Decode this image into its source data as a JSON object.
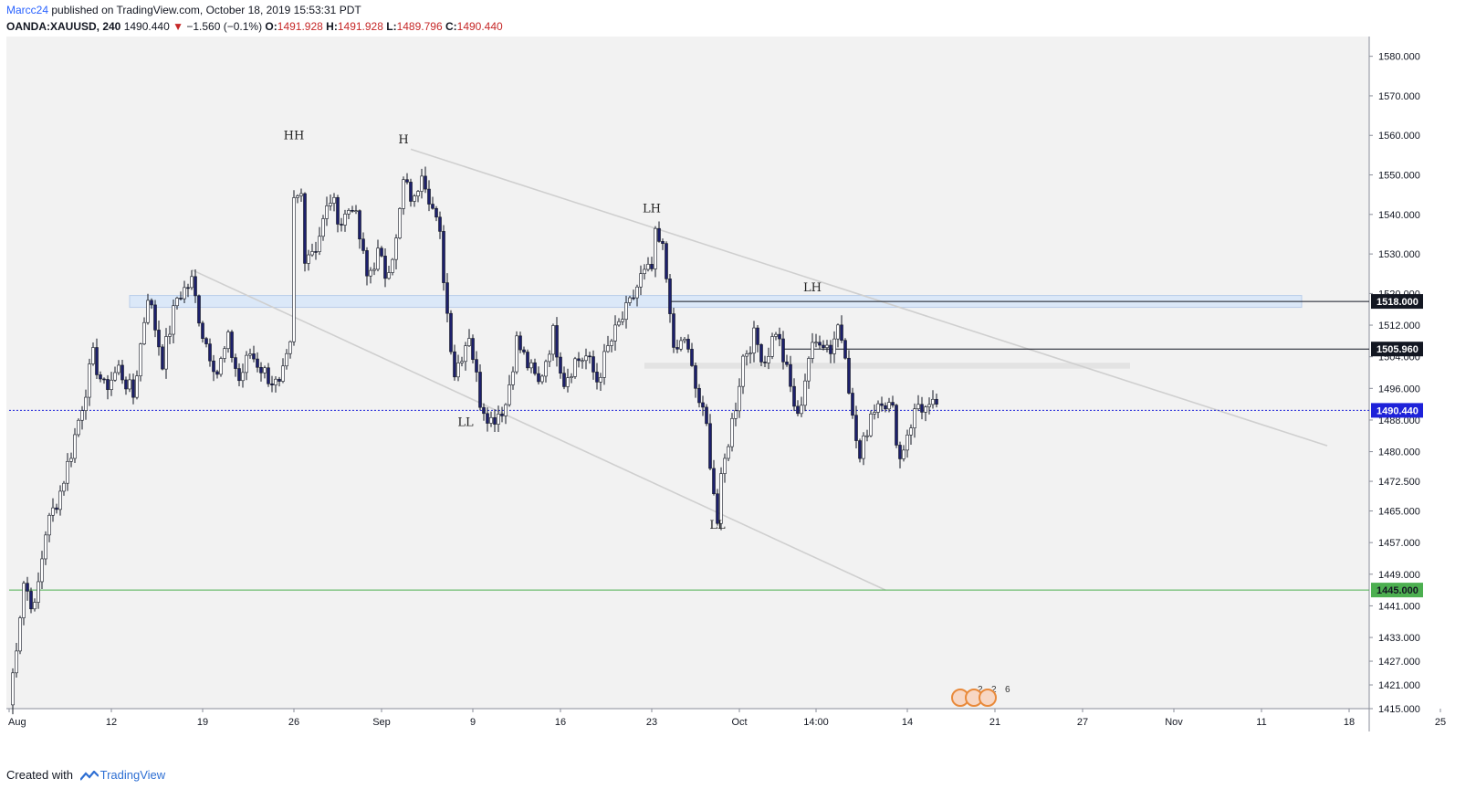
{
  "header": {
    "author": "Marcc24",
    "published": "published on TradingView.com, October 18, 2019 15:53:31 PDT",
    "symbol": "OANDA:XAUUSD, 240",
    "price": "1490.440",
    "arrow": "▼",
    "change": "−1.560 (−0.1%)",
    "o_label": "O:",
    "o_value": "1491.928",
    "h_label": "H:",
    "h_value": "1491.928",
    "l_label": "L:",
    "l_value": "1489.796",
    "c_label": "C:",
    "c_value": "1490.440"
  },
  "footer": {
    "created_with": "Created with",
    "brand": "TradingView"
  },
  "colors": {
    "background": "#f2f2f2",
    "candle": "#1c1f6b",
    "wick": "#131722",
    "zone": "#dbe8f8",
    "green_line": "#4caf50",
    "blue_price": "#1e22d9"
  },
  "chart_data": {
    "type": "candlestick",
    "symbol": "OANDA:XAUUSD",
    "interval": "240",
    "y_axis": {
      "min": 1415,
      "max": 1585,
      "ticks": [
        "1415.000",
        "1421.000",
        "1427.000",
        "1433.000",
        "1441.000",
        "1449.000",
        "1457.000",
        "1465.000",
        "1472.500",
        "1480.000",
        "1488.000",
        "1496.000",
        "1504.000",
        "1512.000",
        "1520.000",
        "1530.000",
        "1540.000",
        "1550.000",
        "1560.000",
        "1570.000",
        "1580.000"
      ],
      "tick_values": [
        1415,
        1421,
        1427,
        1433,
        1441,
        1449,
        1457,
        1465,
        1472.5,
        1480,
        1488,
        1496,
        1504,
        1512,
        1520,
        1530,
        1540,
        1550,
        1560,
        1570,
        1580
      ]
    },
    "x_axis": {
      "labels": [
        "Aug",
        "12",
        "19",
        "26",
        "Sep",
        "9",
        "16",
        "23",
        "Oct",
        "14:00",
        "14",
        "21",
        "27",
        "Nov",
        "11",
        "18",
        "25"
      ],
      "label_bars": [
        0,
        28,
        53,
        78,
        102,
        127,
        151,
        176,
        200,
        221,
        246,
        270,
        294,
        319,
        343,
        367,
        392
      ]
    },
    "price_labels": [
      {
        "text": "1518.000",
        "value": 1518,
        "style": "dark"
      },
      {
        "text": "1505.960",
        "value": 1505.96,
        "style": "dark"
      },
      {
        "text": "1490.440",
        "value": 1490.44,
        "style": "blue"
      },
      {
        "text": "1445.000",
        "value": 1445,
        "style": "green"
      }
    ],
    "annotations": [
      {
        "text": "HH",
        "bar": 78,
        "price": 1559
      },
      {
        "text": "H",
        "bar": 108,
        "price": 1558
      },
      {
        "text": "LH",
        "bar": 176,
        "price": 1540.5
      },
      {
        "text": "LH",
        "bar": 220,
        "price": 1520.5
      },
      {
        "text": "LL",
        "bar": 125,
        "price": 1486.5
      },
      {
        "text": "LL",
        "bar": 194,
        "price": 1460.5
      }
    ],
    "trendlines": [
      {
        "from": {
          "bar": 110,
          "price": 1556.5
        },
        "to": {
          "bar": 361,
          "price": 1481.5
        }
      },
      {
        "from": {
          "bar": 50,
          "price": 1526
        },
        "to": {
          "bar": 240,
          "price": 1445
        }
      }
    ],
    "zones": [
      {
        "from_bar": 33,
        "to_bar": 354,
        "top": 1519.5,
        "bottom": 1516.5,
        "kind": "blue"
      },
      {
        "from_bar": 174,
        "to_bar": 307,
        "top": 1502.5,
        "bottom": 1501,
        "kind": "gray"
      }
    ],
    "hlines": [
      {
        "price": 1518,
        "from_bar": 181,
        "color": "#131722"
      },
      {
        "price": 1505.96,
        "from_bar": 212,
        "color": "#131722"
      },
      {
        "price": 1490.44,
        "from_bar": 0,
        "color": "#1e22d9",
        "dashed": true
      },
      {
        "price": 1445,
        "from_bar": 0,
        "color": "#4caf50"
      }
    ],
    "events": [
      "2",
      "2",
      "6"
    ],
    "path": [
      [
        0,
        1416
      ],
      [
        4,
        1447
      ],
      [
        7,
        1440
      ],
      [
        10,
        1460
      ],
      [
        14,
        1470
      ],
      [
        17,
        1480
      ],
      [
        20,
        1492
      ],
      [
        23,
        1504
      ],
      [
        26,
        1496
      ],
      [
        30,
        1501
      ],
      [
        34,
        1494
      ],
      [
        38,
        1520
      ],
      [
        42,
        1503
      ],
      [
        46,
        1519
      ],
      [
        50,
        1523
      ],
      [
        53,
        1510
      ],
      [
        57,
        1500
      ],
      [
        60,
        1508
      ],
      [
        63,
        1498
      ],
      [
        66,
        1505
      ],
      [
        70,
        1500
      ],
      [
        74,
        1496
      ],
      [
        77,
        1506
      ],
      [
        78,
        1543
      ],
      [
        80,
        1545
      ],
      [
        81,
        1530
      ],
      [
        84,
        1532
      ],
      [
        88,
        1544
      ],
      [
        91,
        1538
      ],
      [
        94,
        1543
      ],
      [
        96,
        1534
      ],
      [
        98,
        1524
      ],
      [
        101,
        1530
      ],
      [
        103,
        1525
      ],
      [
        106,
        1533
      ],
      [
        108,
        1548
      ],
      [
        111,
        1543
      ],
      [
        113,
        1552
      ],
      [
        115,
        1545
      ],
      [
        118,
        1534
      ],
      [
        120,
        1515
      ],
      [
        122,
        1500
      ],
      [
        126,
        1510
      ],
      [
        129,
        1493
      ],
      [
        132,
        1488
      ],
      [
        136,
        1492
      ],
      [
        139,
        1508
      ],
      [
        142,
        1502
      ],
      [
        145,
        1497
      ],
      [
        149,
        1510
      ],
      [
        152,
        1498
      ],
      [
        155,
        1503
      ],
      [
        158,
        1504
      ],
      [
        161,
        1498
      ],
      [
        164,
        1506
      ],
      [
        167,
        1512
      ],
      [
        170,
        1517
      ],
      [
        173,
        1524
      ],
      [
        176,
        1526
      ],
      [
        177,
        1534
      ],
      [
        179,
        1531
      ],
      [
        181,
        1517
      ],
      [
        182,
        1504
      ],
      [
        185,
        1509
      ],
      [
        188,
        1496
      ],
      [
        191,
        1486
      ],
      [
        194,
        1462
      ],
      [
        195,
        1472
      ],
      [
        197,
        1483
      ],
      [
        199,
        1492
      ],
      [
        201,
        1504
      ],
      [
        204,
        1509
      ],
      [
        207,
        1503
      ],
      [
        210,
        1511
      ],
      [
        213,
        1500
      ],
      [
        216,
        1488
      ],
      [
        219,
        1504
      ],
      [
        222,
        1509
      ],
      [
        225,
        1506
      ],
      [
        227,
        1512
      ],
      [
        229,
        1506
      ],
      [
        231,
        1488
      ],
      [
        233,
        1478
      ],
      [
        236,
        1490
      ],
      [
        239,
        1494
      ],
      [
        242,
        1490
      ],
      [
        244,
        1478
      ],
      [
        246,
        1485
      ],
      [
        249,
        1492
      ],
      [
        252,
        1490
      ],
      [
        254,
        1492
      ]
    ]
  }
}
